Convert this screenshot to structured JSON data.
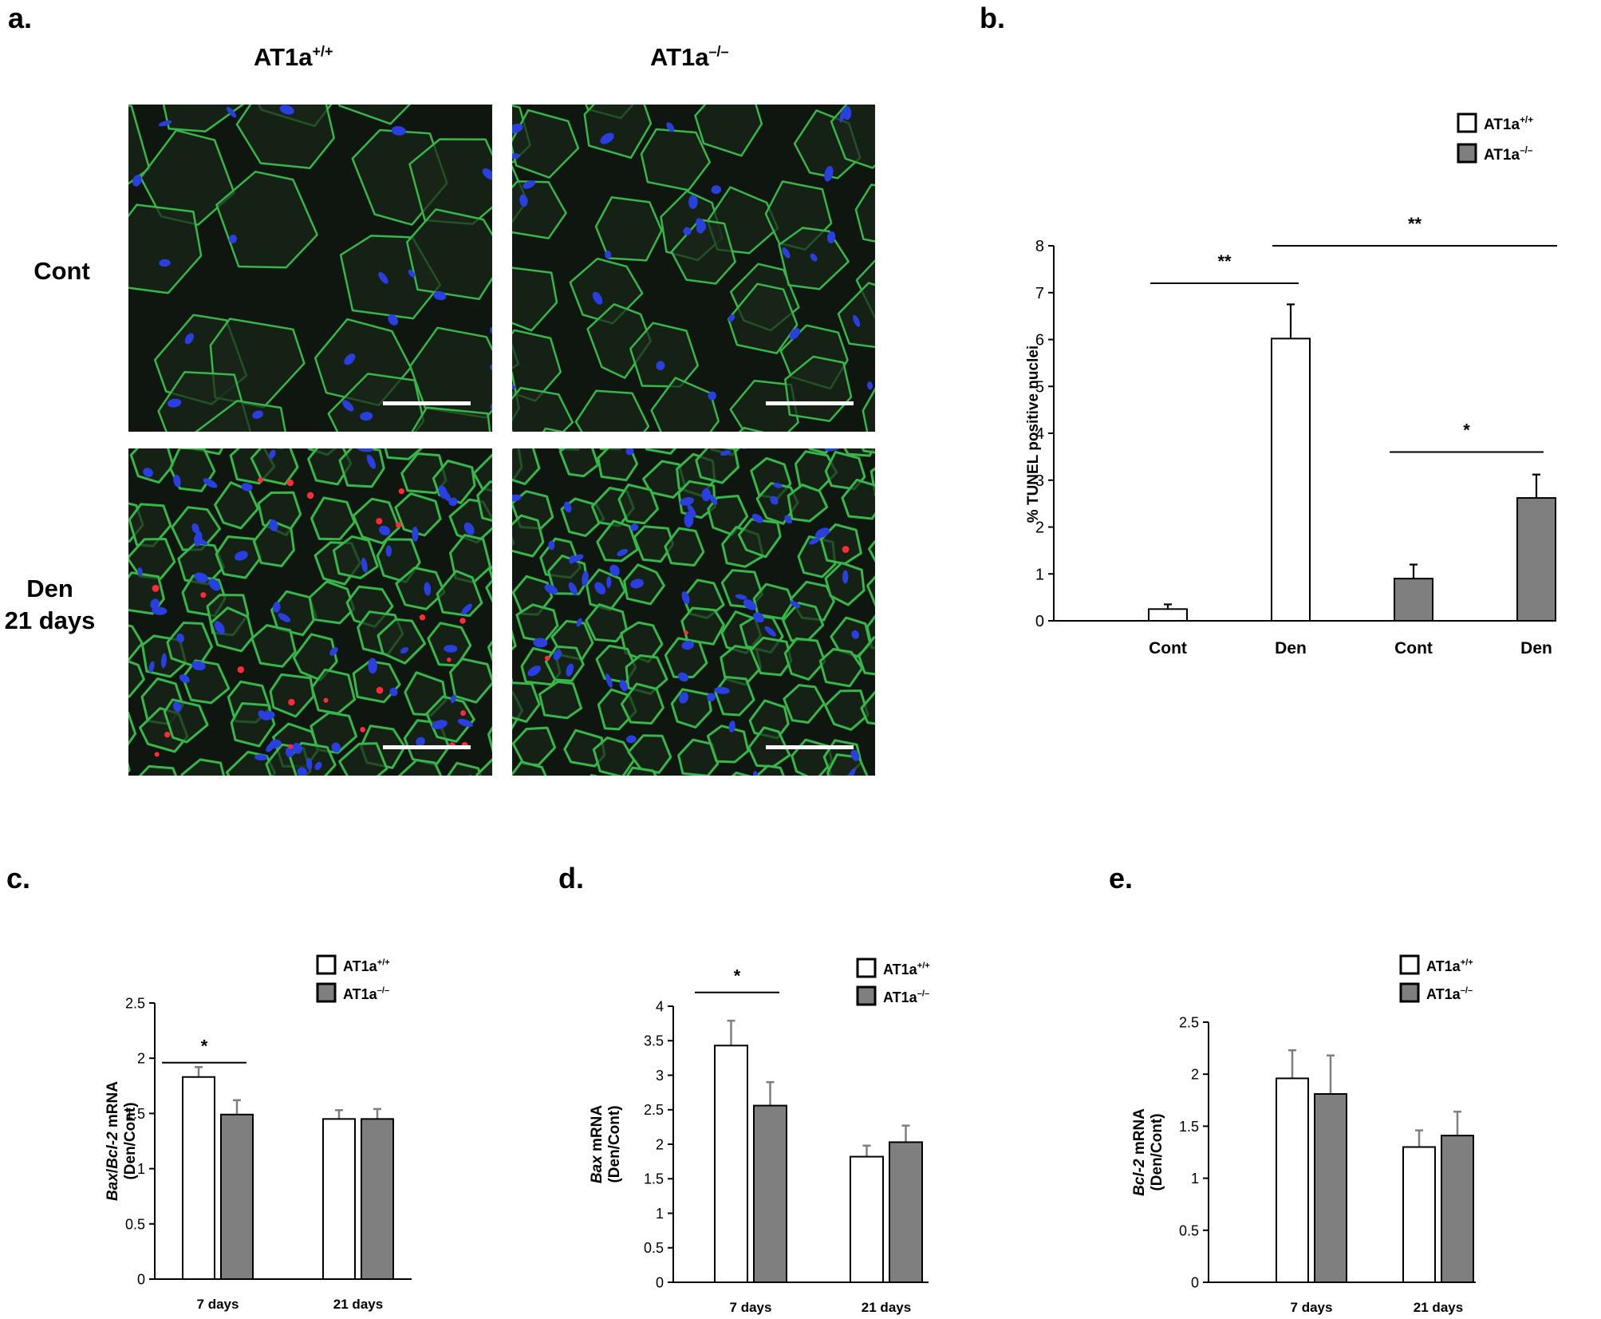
{
  "panel_labels": {
    "a": "a.",
    "b": "b.",
    "c": "c.",
    "d": "d.",
    "e": "e."
  },
  "panel_a": {
    "column_headers": [
      {
        "base": "AT1a",
        "sup": "+/+"
      },
      {
        "base": "AT1a",
        "sup": "–/–"
      }
    ],
    "row_labels": [
      {
        "lines": [
          "Cont"
        ]
      },
      {
        "lines": [
          "Den",
          "21 days"
        ]
      }
    ],
    "colors": {
      "membrane": "#37b64a",
      "nuclei": "#2a3fe0",
      "tunel": "#ff2b3a",
      "fiber": "#0e160f",
      "scale_bar": "#ffffff"
    },
    "images": [
      {
        "name": "micrograph-wt-cont",
        "tunel_positive": false
      },
      {
        "name": "micrograph-ko-cont",
        "tunel_positive": false
      },
      {
        "name": "micrograph-wt-den",
        "tunel_positive": true
      },
      {
        "name": "micrograph-ko-den",
        "tunel_positive": true
      }
    ]
  },
  "legend": [
    {
      "base": "AT1a",
      "sup": "+/+",
      "color": "#ffffff"
    },
    {
      "base": "AT1a",
      "sup": "–/–",
      "color": "#7f7f7f"
    }
  ],
  "chart_data": [
    {
      "panel": "b",
      "type": "bar",
      "ylabel": [
        {
          "text": "% TUNEL positive nuclei",
          "italic": false
        }
      ],
      "ylim": [
        0,
        8
      ],
      "yticks": [
        "0",
        "1",
        "2",
        "3",
        "4",
        "5",
        "6",
        "7",
        "8"
      ],
      "ytick_values": [
        0,
        1,
        2,
        3,
        4,
        5,
        6,
        7,
        8
      ],
      "categories": [
        "Cont",
        "Den",
        "Cont",
        "Den"
      ],
      "values": [
        0.25,
        6.02,
        0.9,
        2.62
      ],
      "errors": [
        0.1,
        0.73,
        0.3,
        0.5
      ],
      "bar_colors": [
        "#ffffff",
        "#ffffff",
        "#7f7f7f",
        "#7f7f7f"
      ],
      "significance": [
        {
          "from": 0,
          "to": 1,
          "y": 7.2,
          "label": "**"
        },
        {
          "from": 1,
          "to": 3,
          "y": 8.0,
          "label": "**"
        },
        {
          "from": 2,
          "to": 3,
          "y": 3.6,
          "label": "*"
        }
      ],
      "grid": false,
      "legend_position": "top-right"
    },
    {
      "panel": "c",
      "type": "bar",
      "ylabel": [
        {
          "text": "Bax",
          "italic": true
        },
        {
          "text": "/",
          "italic": false
        },
        {
          "text": "Bcl-2",
          "italic": true
        },
        {
          "text": " mRNA",
          "italic": false
        }
      ],
      "ylabel2": "(Den/Cont)",
      "ylim": [
        0,
        2.5
      ],
      "yticks": [
        "0",
        "0.5",
        "1",
        "1.5",
        "2",
        "2.5"
      ],
      "ytick_values": [
        0,
        0.5,
        1,
        1.5,
        2,
        2.5
      ],
      "categories": [
        "7 days",
        "21 days"
      ],
      "series": [
        {
          "name": "AT1a+/+",
          "values": [
            1.83,
            1.45
          ],
          "errors": [
            0.09,
            0.08
          ]
        },
        {
          "name": "AT1a–/–",
          "values": [
            1.49,
            1.45
          ],
          "errors": [
            0.13,
            0.09
          ]
        }
      ],
      "significance": [
        {
          "group": 0,
          "y": 1.96,
          "label": "*"
        }
      ],
      "grid": false,
      "legend_position": "top-right"
    },
    {
      "panel": "d",
      "type": "bar",
      "ylabel": [
        {
          "text": "Bax",
          "italic": true
        },
        {
          "text": " mRNA",
          "italic": false
        }
      ],
      "ylabel2": "(Den/Cont)",
      "ylim": [
        0,
        4
      ],
      "yticks": [
        "0",
        "0.5",
        "1",
        "1.5",
        "2",
        "2.5",
        "3",
        "3.5",
        "4"
      ],
      "ytick_values": [
        0,
        0.5,
        1,
        1.5,
        2,
        2.5,
        3,
        3.5,
        4
      ],
      "categories": [
        "7 days",
        "21 days"
      ],
      "series": [
        {
          "name": "AT1a+/+",
          "values": [
            3.43,
            1.82
          ],
          "errors": [
            0.36,
            0.16
          ]
        },
        {
          "name": "AT1a–/–",
          "values": [
            2.56,
            2.03
          ],
          "errors": [
            0.34,
            0.24
          ]
        }
      ],
      "significance": [
        {
          "group": 0,
          "y": 4.2,
          "label": "*"
        }
      ],
      "grid": false,
      "legend_position": "top-right"
    },
    {
      "panel": "e",
      "type": "bar",
      "ylabel": [
        {
          "text": "Bcl-2",
          "italic": true
        },
        {
          "text": " mRNA",
          "italic": false
        }
      ],
      "ylabel2": "(Den/Cont)",
      "ylim": [
        0,
        2.5
      ],
      "yticks": [
        "0",
        "0.5",
        "1",
        "1.5",
        "2",
        "2.5"
      ],
      "ytick_values": [
        0,
        0.5,
        1,
        1.5,
        2,
        2.5
      ],
      "categories": [
        "7 days",
        "21 days"
      ],
      "series": [
        {
          "name": "AT1a+/+",
          "values": [
            1.96,
            1.3
          ],
          "errors": [
            0.27,
            0.16
          ]
        },
        {
          "name": "AT1a–/–",
          "values": [
            1.81,
            1.41
          ],
          "errors": [
            0.37,
            0.23
          ]
        }
      ],
      "significance": [],
      "grid": false,
      "legend_position": "top-right"
    }
  ]
}
